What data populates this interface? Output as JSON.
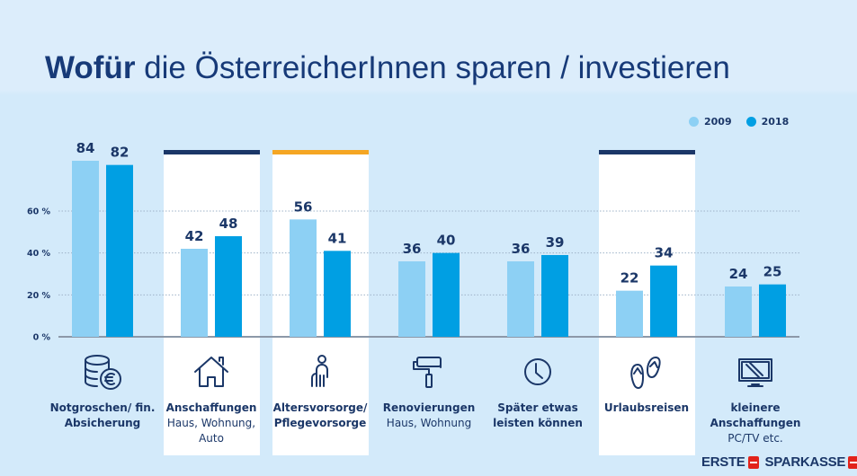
{
  "title": {
    "bold": "Wofür",
    "rest": " die ÖsterreicherInnen sparen / investieren"
  },
  "legend": [
    {
      "label": "2009",
      "color": "#8dd0f4"
    },
    {
      "label": "2018",
      "color": "#009fe3"
    }
  ],
  "highlights": [
    {
      "category_index": 1,
      "topbar_color": "#1b3768"
    },
    {
      "category_index": 2,
      "topbar_color": "#f5a623"
    },
    {
      "category_index": 5,
      "topbar_color": "#1b3768"
    }
  ],
  "categories": [
    {
      "main": "Notgroschen/ fin. Absicherung",
      "sub": "",
      "icon": "coins-euro-icon"
    },
    {
      "main": "Anschaffungen",
      "sub": "Haus, Wohnung, Auto",
      "icon": "house-icon"
    },
    {
      "main": "Altersvorsorge/ Pflegevorsorge",
      "sub": "",
      "icon": "elderly-person-icon"
    },
    {
      "main": "Renovierungen",
      "sub": "Haus, Wohnung",
      "icon": "paint-roller-icon"
    },
    {
      "main": "Später etwas leisten können",
      "sub": "",
      "icon": "clock-icon"
    },
    {
      "main": "Urlaubsreisen",
      "sub": "",
      "icon": "flip-flops-icon"
    },
    {
      "main": "kleinere Anschaffungen",
      "sub": "PC/TV etc.",
      "icon": "tv-screen-icon"
    }
  ],
  "logo": {
    "left": "ERSTE",
    "right": "SPARKASSE"
  },
  "chart_data": {
    "type": "bar",
    "title": "Wofür die ÖsterreicherInnen sparen / investieren",
    "xlabel": "",
    "ylabel": "",
    "ylim": [
      0,
      90
    ],
    "yticks": [
      0,
      20,
      40,
      60
    ],
    "ytick_labels": [
      "0 %",
      "20 %",
      "40 %",
      "60 %"
    ],
    "grid": true,
    "legend_position": "top-right",
    "categories": [
      "Notgroschen/ fin. Absicherung",
      "Anschaffungen",
      "Altersvorsorge/ Pflegevorsorge",
      "Renovierungen",
      "Später etwas leisten können",
      "Urlaubsreisen",
      "kleinere Anschaffungen"
    ],
    "series": [
      {
        "name": "2009",
        "color": "#8dd0f4",
        "values": [
          84,
          42,
          56,
          36,
          36,
          22,
          24
        ]
      },
      {
        "name": "2018",
        "color": "#009fe3",
        "values": [
          82,
          48,
          41,
          40,
          39,
          34,
          25
        ]
      }
    ]
  }
}
